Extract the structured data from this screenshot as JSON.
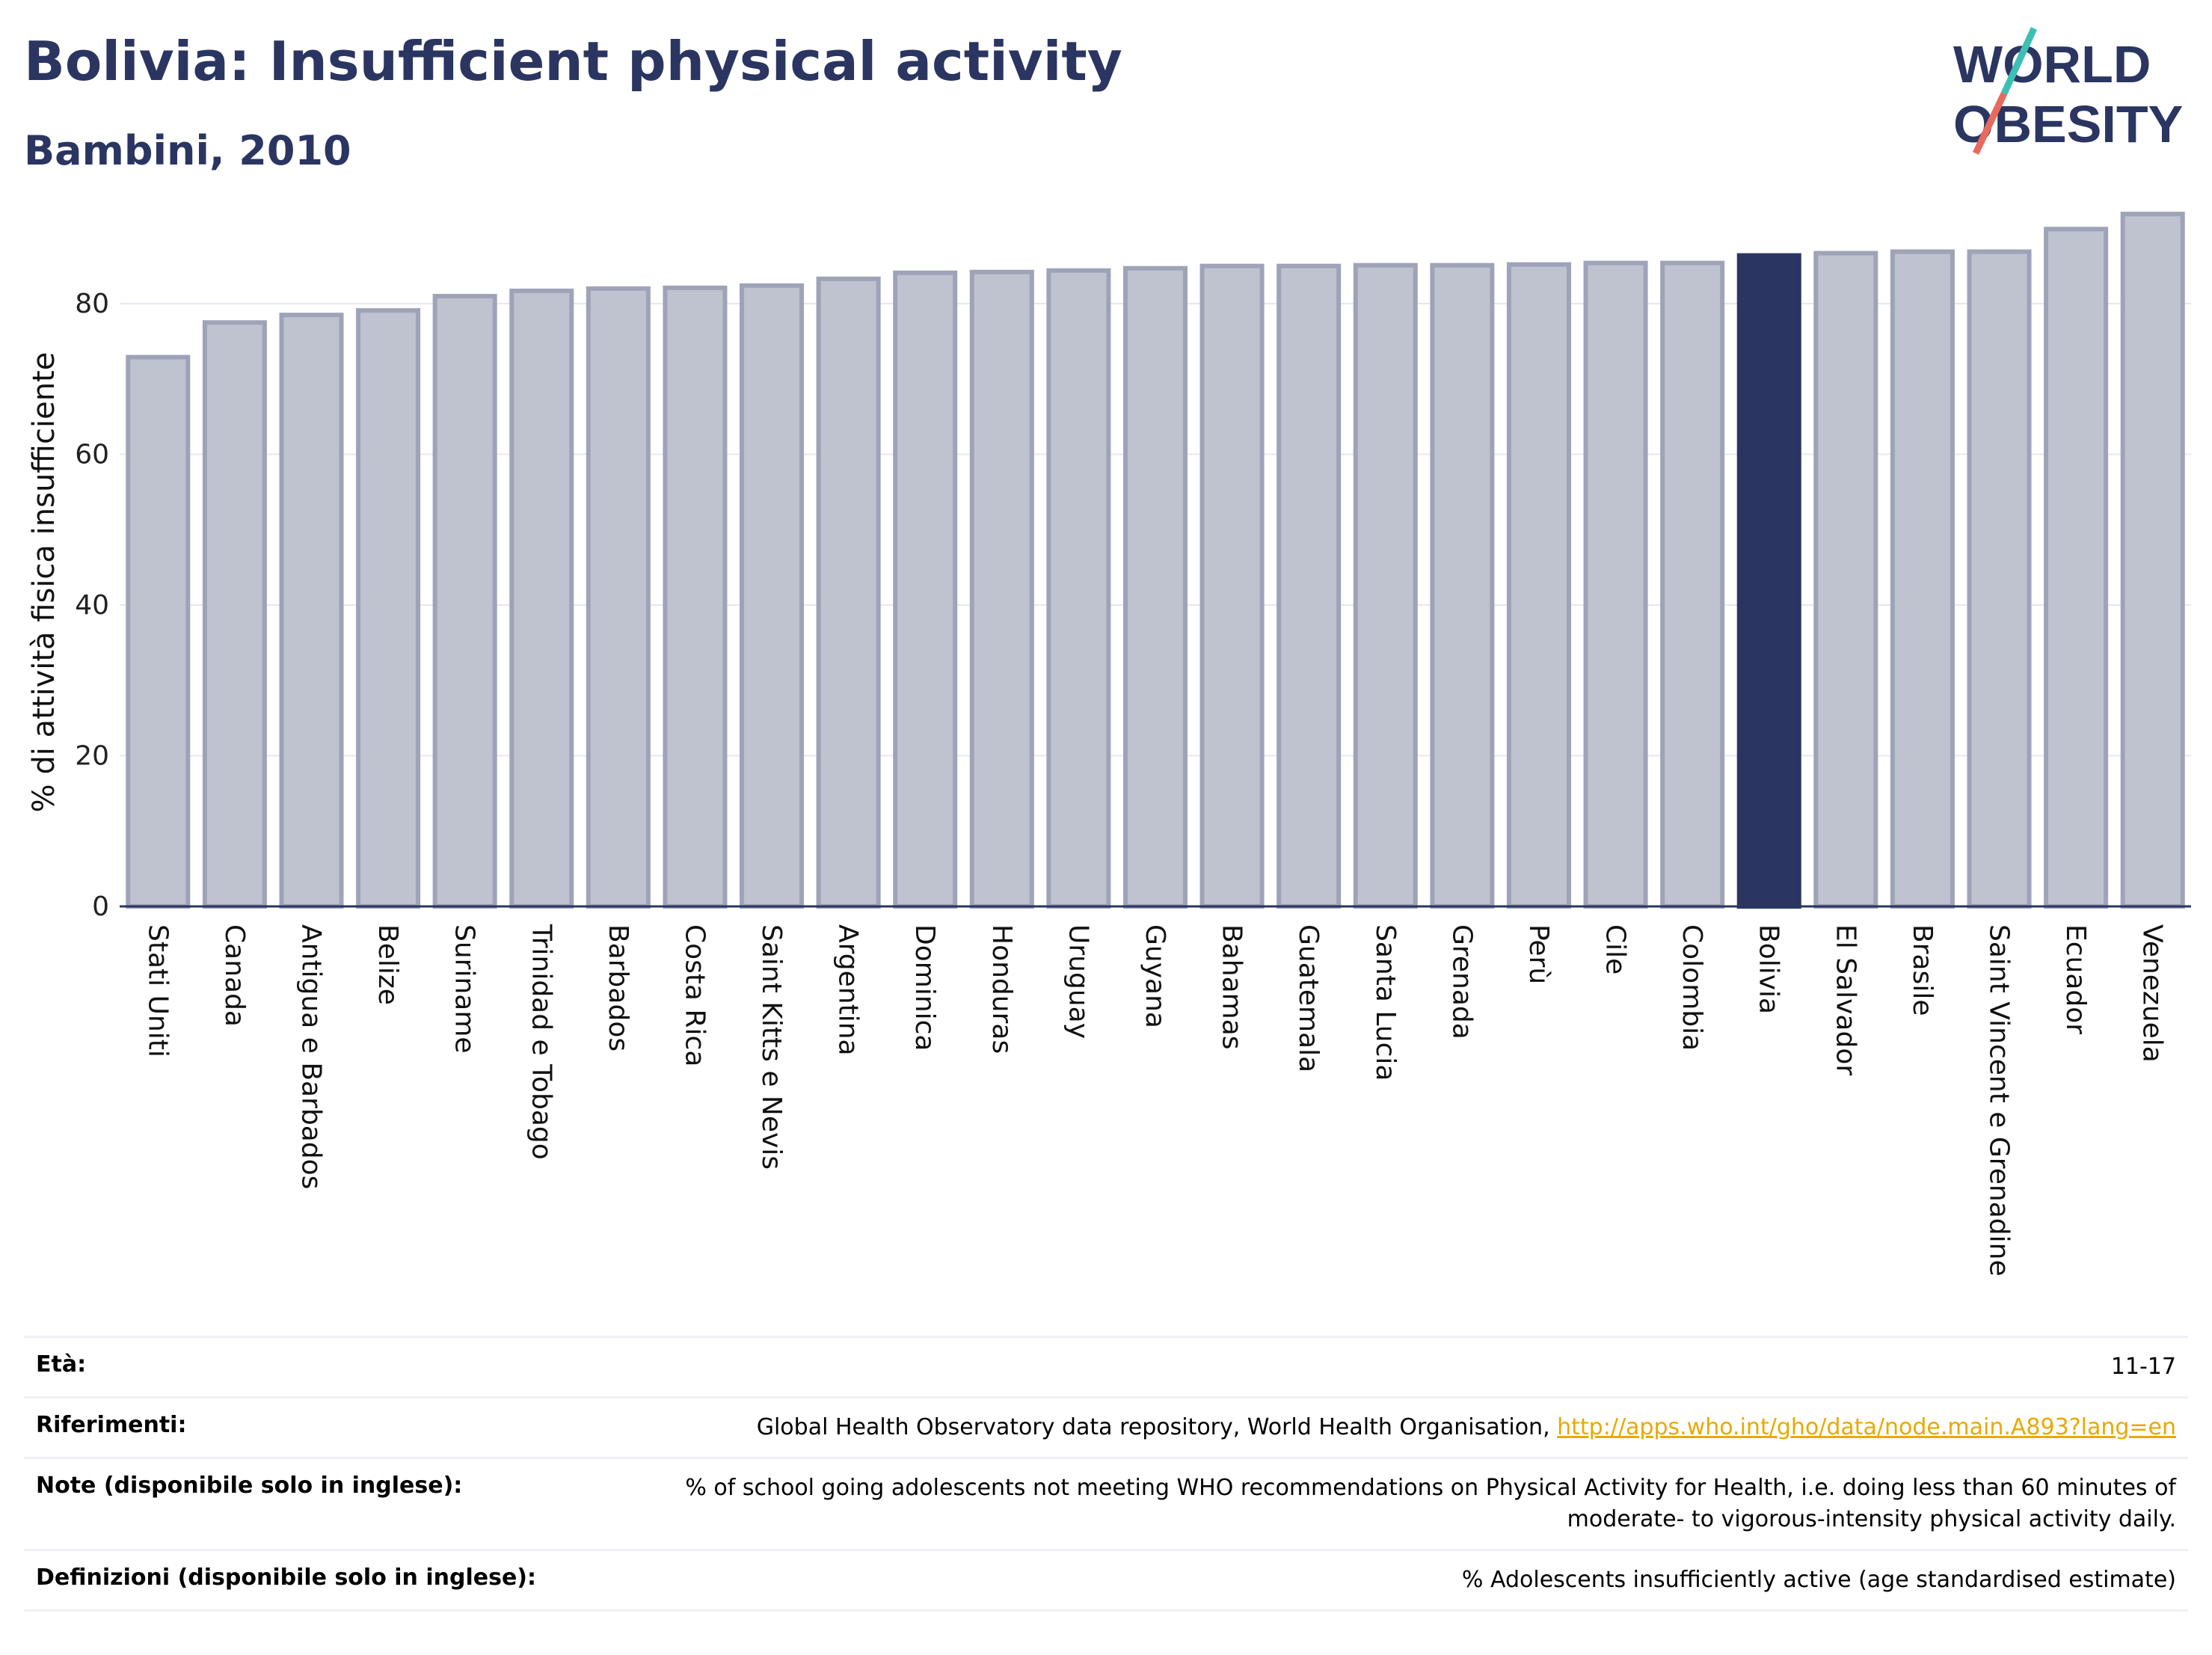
{
  "header": {
    "title": "Bolivia: Insufficient physical activity",
    "subtitle": "Bambini, 2010"
  },
  "logo": {
    "line1": "WORLD",
    "line2": "OBESITY",
    "text_color": "#2b3561",
    "slash_top_color": "#3dbfb5",
    "slash_bottom_color": "#e86a5e"
  },
  "chart_data": {
    "type": "bar",
    "ylabel": "% di attività fisica insufficiente",
    "xlabel": "",
    "ylim": [
      0,
      94
    ],
    "yticks": [
      0,
      20,
      40,
      60,
      80
    ],
    "grid": true,
    "bar_color": "#bfc2cf",
    "bar_edge_color": "#9ea3b8",
    "highlight_color": "#2b3561",
    "highlight": "Bolivia",
    "categories": [
      "Stati Uniti",
      "Canada",
      "Antigua e Barbados",
      "Belize",
      "Suriname",
      "Trinidad e Tobago",
      "Barbados",
      "Costa Rica",
      "Saint Kitts e Nevis",
      "Argentina",
      "Dominica",
      "Honduras",
      "Uruguay",
      "Guyana",
      "Bahamas",
      "Guatemala",
      "Santa Lucia",
      "Grenada",
      "Perù",
      "Cile",
      "Colombia",
      "Bolivia",
      "El Salvador",
      "Brasile",
      "Saint Vincent e Grenadine",
      "Ecuador",
      "Venezuela"
    ],
    "values": [
      72.9,
      77.5,
      78.5,
      79.1,
      81.0,
      81.7,
      82.0,
      82.1,
      82.4,
      83.3,
      84.1,
      84.2,
      84.4,
      84.7,
      85.0,
      85.0,
      85.1,
      85.1,
      85.2,
      85.4,
      85.4,
      86.4,
      86.7,
      86.9,
      86.9,
      89.9,
      91.9
    ]
  },
  "meta": [
    {
      "label": "Età:",
      "value": "11-17",
      "link": ""
    },
    {
      "label": "Riferimenti:",
      "value": "Global Health Observatory data repository, World Health Organisation, ",
      "link": "http://apps.who.int/gho/data/node.main.A893?lang=en"
    },
    {
      "label": "Note (disponibile solo in inglese):",
      "value": "% of school going adolescents not meeting WHO recommendations on Physical Activity for Health, i.e. doing less than 60 minutes of moderate- to vigorous-intensity physical activity daily.",
      "link": ""
    },
    {
      "label": "Definizioni (disponibile solo in inglese):",
      "value": "% Adolescents insufficiently active (age standardised estimate)",
      "link": ""
    }
  ]
}
